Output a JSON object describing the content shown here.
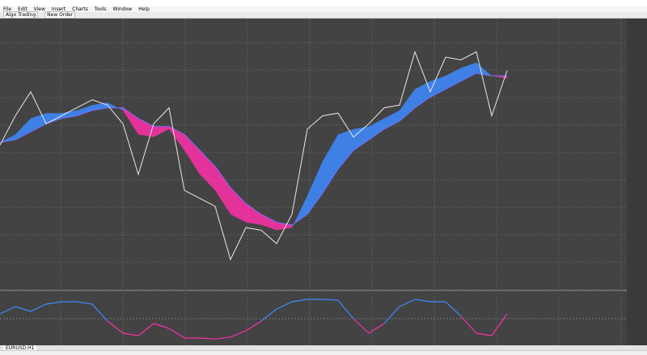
{
  "window": {
    "menu": [
      "File",
      "Edit",
      "View",
      "Insert",
      "Charts",
      "Tools",
      "Window",
      "Help"
    ],
    "toolbar": [
      "Algo Trading",
      "New Order"
    ],
    "tab": "EURUSD,H1"
  },
  "price_panel": {
    "type": "line",
    "ylim": [
      0,
      100
    ],
    "close": [
      54,
      65,
      74,
      62,
      65,
      68,
      71,
      69,
      62,
      43,
      62,
      68,
      37,
      34,
      31,
      11,
      23,
      22,
      17,
      28,
      60,
      65,
      66,
      57,
      62,
      68,
      69,
      89,
      74,
      87,
      86,
      89,
      65,
      82
    ],
    "ma_fast": [
      55,
      58,
      64,
      66,
      66,
      67,
      69,
      70,
      67,
      58,
      57,
      60,
      52,
      43,
      37,
      28,
      25,
      24,
      22,
      23,
      35,
      48,
      58,
      60,
      61,
      64,
      67,
      75,
      78,
      80,
      83,
      85,
      80,
      79
    ],
    "ma_slow": [
      55,
      56,
      59,
      62,
      64,
      65,
      67,
      68,
      68,
      64,
      61,
      61,
      58,
      52,
      46,
      38,
      32,
      28,
      25,
      24,
      28,
      36,
      45,
      52,
      56,
      60,
      63,
      68,
      72,
      75,
      78,
      81,
      80,
      80
    ],
    "up_color": "#3d8bff",
    "down_color": "#ff2fa8",
    "close_color": "#e8e8e8"
  },
  "oscillator_panel": {
    "type": "line",
    "ylim": [
      0,
      100
    ],
    "level": 50,
    "values": [
      60,
      75,
      65,
      80,
      85,
      85,
      80,
      45,
      20,
      15,
      40,
      30,
      10,
      10,
      8,
      12,
      25,
      45,
      70,
      85,
      90,
      90,
      88,
      50,
      20,
      40,
      75,
      90,
      85,
      85,
      55,
      20,
      15,
      60
    ]
  }
}
